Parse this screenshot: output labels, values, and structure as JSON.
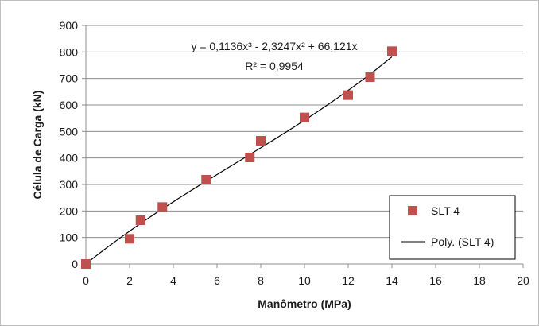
{
  "chart_data": {
    "type": "scatter",
    "title": "",
    "xlabel": "Manômetro (MPa)",
    "ylabel": "Célula de Carga (kN)",
    "xlim": [
      0,
      20
    ],
    "ylim": [
      0,
      900
    ],
    "xticks": [
      0,
      2,
      4,
      6,
      8,
      10,
      12,
      14,
      16,
      18,
      20
    ],
    "yticks": [
      0,
      100,
      200,
      300,
      400,
      500,
      600,
      700,
      800,
      900
    ],
    "grid": "horizontal",
    "legend_position": "bottom-right",
    "series": [
      {
        "name": "SLT 4",
        "marker": "square",
        "color": "#c0504d",
        "points": [
          {
            "x": 0,
            "y": 0
          },
          {
            "x": 2,
            "y": 95
          },
          {
            "x": 2.5,
            "y": 165
          },
          {
            "x": 3.5,
            "y": 215
          },
          {
            "x": 5.5,
            "y": 318
          },
          {
            "x": 7.5,
            "y": 402
          },
          {
            "x": 8,
            "y": 465
          },
          {
            "x": 10,
            "y": 553
          },
          {
            "x": 12,
            "y": 637
          },
          {
            "x": 13,
            "y": 705
          },
          {
            "x": 14,
            "y": 803
          }
        ]
      }
    ],
    "trendline": {
      "name": "Poly. (SLT 4)",
      "type": "polynomial",
      "coefficients": {
        "a3": 0.1136,
        "a2": -2.3247,
        "a1": 66.121,
        "a0": 0
      },
      "x_range": [
        0,
        14
      ],
      "color": "#000000",
      "equation_text": "y = 0,1136x³ - 2,3247x² + 66,121x",
      "r2_text": "R² = 0,9954"
    }
  }
}
